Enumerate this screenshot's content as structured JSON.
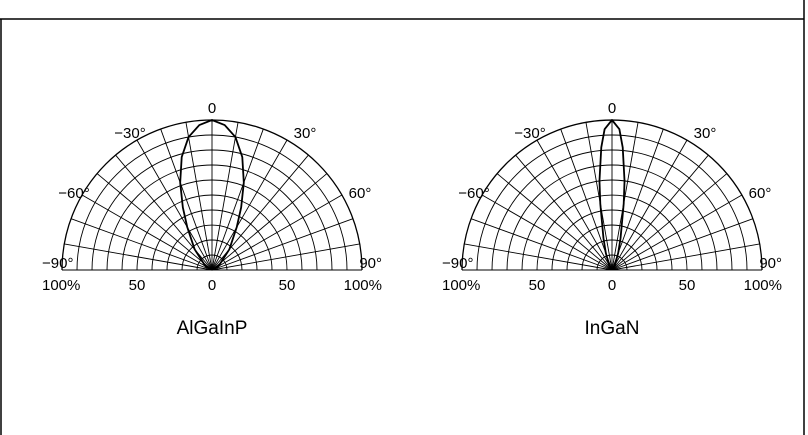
{
  "chart_data": [
    {
      "type": "polar",
      "title": "AlGaInP",
      "angle_unit": "degrees",
      "angular_range": [
        -90,
        90
      ],
      "angle_tick_labels": [
        "−90°",
        "−60°",
        "−30°",
        "0",
        "30°",
        "60°",
        "90°"
      ],
      "radial_range": [
        0,
        100
      ],
      "radial_tick_labels": [
        "100%",
        "50",
        "0",
        "50",
        "100%"
      ],
      "grid": true,
      "series": [
        {
          "angles": [
            -90,
            -60,
            -40,
            -30,
            -25,
            -20,
            -15,
            -10,
            -5,
            0,
            5,
            10,
            15,
            20,
            25,
            30,
            40,
            60,
            90
          ],
          "values": [
            0,
            5,
            18,
            33,
            46,
            62,
            78,
            90,
            97,
            100,
            97,
            90,
            78,
            62,
            46,
            33,
            18,
            5,
            0
          ]
        }
      ]
    },
    {
      "type": "polar",
      "title": "InGaN",
      "angle_unit": "degrees",
      "angular_range": [
        -90,
        90
      ],
      "angle_tick_labels": [
        "−90°",
        "−60°",
        "−30°",
        "0",
        "30°",
        "60°",
        "90°"
      ],
      "radial_range": [
        0,
        100
      ],
      "radial_tick_labels": [
        "100%",
        "50",
        "0",
        "50",
        "100%"
      ],
      "grid": true,
      "series": [
        {
          "angles": [
            -90,
            -30,
            -20,
            -15,
            -10,
            -8,
            -5,
            -3,
            0,
            3,
            5,
            8,
            10,
            15,
            20,
            30,
            90
          ],
          "values": [
            0,
            4,
            12,
            22,
            45,
            60,
            82,
            94,
            100,
            94,
            82,
            60,
            45,
            22,
            12,
            4,
            0
          ]
        }
      ]
    }
  ]
}
